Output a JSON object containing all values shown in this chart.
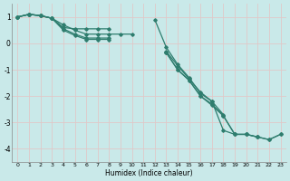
{
  "xlabel": "Humidex (Indice chaleur)",
  "background_color": "#c9e9e9",
  "grid_color": "#e0c8c8",
  "line_color": "#2e7d6e",
  "ylim": [
    -4.5,
    1.5
  ],
  "xlim": [
    -0.5,
    23.5
  ],
  "yticks": [
    -4,
    -3,
    -2,
    -1,
    0,
    1
  ],
  "xticks": [
    0,
    1,
    2,
    3,
    4,
    5,
    6,
    7,
    8,
    9,
    10,
    11,
    12,
    13,
    14,
    15,
    16,
    17,
    18,
    19,
    20,
    21,
    22,
    23
  ],
  "series": [
    {
      "x": [
        0,
        1,
        2,
        3,
        4,
        5,
        6,
        7,
        8,
        9,
        10,
        11,
        12,
        13,
        14,
        15,
        16,
        17,
        18,
        19,
        20,
        21,
        22,
        23
      ],
      "y": [
        1.0,
        1.1,
        1.05,
        0.95,
        0.6,
        0.55,
        0.55,
        0.55,
        0.55,
        null,
        null,
        null,
        0.9,
        -0.15,
        -0.8,
        -1.3,
        -1.9,
        -2.2,
        -3.3,
        -3.45,
        -3.45,
        -3.55,
        null,
        null
      ]
    },
    {
      "x": [
        0,
        1,
        2,
        3,
        4,
        5,
        6,
        7,
        8,
        9,
        10,
        11,
        12,
        13,
        14,
        15,
        16,
        17,
        18,
        19,
        20,
        21,
        22,
        23
      ],
      "y": [
        1.0,
        1.1,
        1.05,
        0.95,
        0.55,
        0.35,
        0.2,
        0.2,
        0.2,
        null,
        null,
        null,
        null,
        -0.35,
        -1.0,
        -1.4,
        -2.0,
        -2.35,
        -2.75,
        -3.45,
        -3.45,
        -3.55,
        -3.65,
        -3.45
      ]
    },
    {
      "x": [
        0,
        1,
        2,
        3,
        4,
        5,
        6,
        7,
        8,
        9,
        10,
        11,
        12,
        13,
        14,
        15,
        16,
        17,
        18,
        19,
        20,
        21,
        22,
        23
      ],
      "y": [
        1.0,
        1.1,
        1.05,
        0.95,
        0.5,
        0.3,
        0.15,
        0.15,
        0.15,
        null,
        null,
        null,
        null,
        -0.35,
        -1.0,
        -1.4,
        -2.0,
        -2.3,
        -2.75,
        -3.45,
        -3.45,
        -3.55,
        -3.65,
        -3.45
      ]
    },
    {
      "x": [
        0,
        1,
        2,
        3,
        4,
        5,
        6,
        7,
        8,
        9,
        10,
        11,
        12,
        13,
        14,
        15,
        16,
        17,
        18,
        19,
        20,
        21,
        22,
        23
      ],
      "y": [
        1.0,
        1.1,
        1.05,
        0.95,
        0.7,
        0.5,
        0.35,
        0.35,
        0.35,
        0.35,
        0.35,
        null,
        null,
        -0.3,
        -0.85,
        -1.35,
        -1.85,
        -2.2,
        -2.7,
        null,
        null,
        null,
        null,
        null
      ]
    }
  ]
}
